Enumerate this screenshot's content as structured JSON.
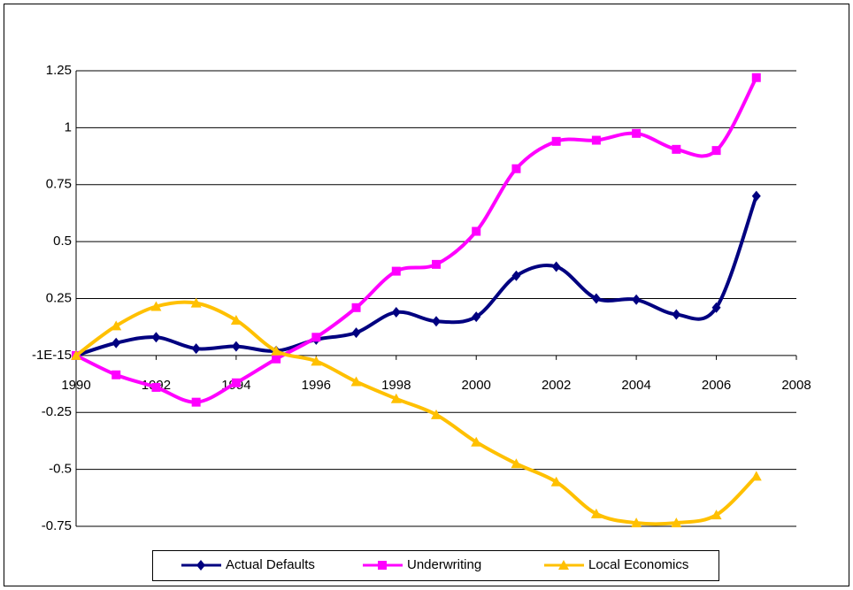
{
  "chart_data": {
    "type": "line",
    "x": [
      1990,
      1991,
      1992,
      1993,
      1994,
      1995,
      1996,
      1997,
      1998,
      1999,
      2000,
      2001,
      2002,
      2003,
      2004,
      2005,
      2006,
      2007
    ],
    "series": [
      {
        "name": "Actual Defaults",
        "color": "#000080",
        "marker": "diamond",
        "values": [
          0,
          0.055,
          0.08,
          0.03,
          0.04,
          0.02,
          0.07,
          0.1,
          0.19,
          0.15,
          0.17,
          0.35,
          0.39,
          0.25,
          0.245,
          0.18,
          0.21,
          0.7
        ]
      },
      {
        "name": "Underwriting",
        "color": "#ff00ff",
        "marker": "square",
        "values": [
          0,
          -0.085,
          -0.14,
          -0.205,
          -0.12,
          -0.015,
          0.08,
          0.21,
          0.37,
          0.4,
          0.545,
          0.82,
          0.94,
          0.945,
          0.975,
          0.905,
          0.9,
          1.22
        ]
      },
      {
        "name": "Local Economics",
        "color": "#ffc000",
        "marker": "triangle",
        "values": [
          0,
          0.13,
          0.215,
          0.23,
          0.155,
          0.02,
          -0.025,
          -0.115,
          -0.19,
          -0.26,
          -0.38,
          -0.475,
          -0.555,
          -0.695,
          -0.735,
          -0.735,
          -0.7,
          -0.53
        ]
      }
    ],
    "xlim": [
      1990,
      2008
    ],
    "xticks": [
      1990,
      1992,
      1994,
      1996,
      1998,
      2000,
      2002,
      2004,
      2006,
      2008
    ],
    "ylim": [
      -0.75,
      1.25
    ],
    "yticks": [
      -0.75,
      -0.5,
      -0.25,
      {
        "value": -1e-15,
        "label": "-1E-15"
      },
      0.25,
      0.5,
      0.75,
      1,
      1.25
    ],
    "grid": true,
    "legend": "bottom",
    "smooth": true
  }
}
